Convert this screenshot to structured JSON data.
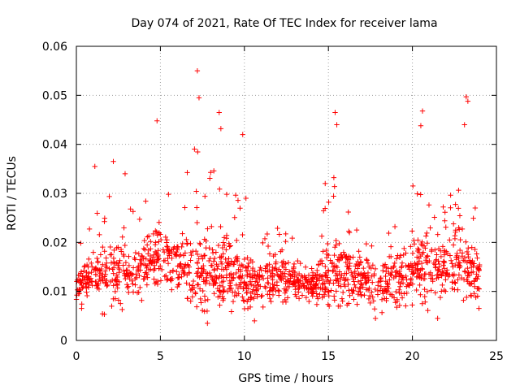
{
  "chart_data": {
    "type": "scatter",
    "title": "Day 074 of 2021, Rate Of TEC Index for receiver lama",
    "xlabel": "GPS time / hours",
    "ylabel": "ROTI / TECUs",
    "xlim": [
      0,
      25
    ],
    "ylim": [
      0,
      0.06
    ],
    "x_ticks": [
      0,
      5,
      10,
      15,
      20,
      25
    ],
    "x_tick_labels": [
      "0",
      "5",
      "10",
      "15",
      "20",
      "25"
    ],
    "y_ticks": [
      0,
      0.01,
      0.02,
      0.03,
      0.04,
      0.05,
      0.06
    ],
    "y_tick_labels": [
      "0",
      "0.01",
      "0.02",
      "0.03",
      "0.04",
      "0.05",
      "0.06"
    ],
    "grid": true,
    "marker": "+",
    "marker_color": "#ff0000",
    "series": [
      {
        "name": "ROTI",
        "notable_points": [
          {
            "x": 7.2,
            "y": 0.055
          },
          {
            "x": 7.3,
            "y": 0.0495
          },
          {
            "x": 4.8,
            "y": 0.0448
          },
          {
            "x": 8.5,
            "y": 0.0465
          },
          {
            "x": 8.6,
            "y": 0.0432
          },
          {
            "x": 9.9,
            "y": 0.042
          },
          {
            "x": 15.4,
            "y": 0.0465
          },
          {
            "x": 15.5,
            "y": 0.044
          },
          {
            "x": 20.6,
            "y": 0.0468
          },
          {
            "x": 20.5,
            "y": 0.0438
          },
          {
            "x": 23.2,
            "y": 0.0497
          },
          {
            "x": 23.3,
            "y": 0.0488
          },
          {
            "x": 23.1,
            "y": 0.044
          },
          {
            "x": 1.1,
            "y": 0.0355
          },
          {
            "x": 2.2,
            "y": 0.0365
          },
          {
            "x": 2.9,
            "y": 0.034
          },
          {
            "x": 7.8,
            "y": 0.0035
          },
          {
            "x": 10.6,
            "y": 0.004
          },
          {
            "x": 17.8,
            "y": 0.0045
          },
          {
            "x": 21.5,
            "y": 0.0045
          }
        ],
        "envelope_hourly": [
          {
            "hour": 0,
            "low": 0.006,
            "high": 0.018
          },
          {
            "hour": 1,
            "low": 0.005,
            "high": 0.028
          },
          {
            "hour": 2,
            "low": 0.005,
            "high": 0.03
          },
          {
            "hour": 3,
            "low": 0.006,
            "high": 0.027
          },
          {
            "hour": 4,
            "low": 0.008,
            "high": 0.03
          },
          {
            "hour": 5,
            "low": 0.009,
            "high": 0.035
          },
          {
            "hour": 6,
            "low": 0.008,
            "high": 0.03
          },
          {
            "hour": 7,
            "low": 0.006,
            "high": 0.04
          },
          {
            "hour": 8,
            "low": 0.004,
            "high": 0.035
          },
          {
            "hour": 9,
            "low": 0.005,
            "high": 0.033
          },
          {
            "hour": 10,
            "low": 0.004,
            "high": 0.03
          },
          {
            "hour": 11,
            "low": 0.006,
            "high": 0.022
          },
          {
            "hour": 12,
            "low": 0.006,
            "high": 0.026
          },
          {
            "hour": 13,
            "low": 0.007,
            "high": 0.02
          },
          {
            "hour": 14,
            "low": 0.006,
            "high": 0.017
          },
          {
            "hour": 15,
            "low": 0.007,
            "high": 0.036
          },
          {
            "hour": 16,
            "low": 0.007,
            "high": 0.033
          },
          {
            "hour": 17,
            "low": 0.006,
            "high": 0.022
          },
          {
            "hour": 18,
            "low": 0.005,
            "high": 0.02
          },
          {
            "hour": 19,
            "low": 0.005,
            "high": 0.03
          },
          {
            "hour": 20,
            "low": 0.005,
            "high": 0.035
          },
          {
            "hour": 21,
            "low": 0.005,
            "high": 0.033
          },
          {
            "hour": 22,
            "low": 0.006,
            "high": 0.028
          },
          {
            "hour": 23,
            "low": 0.006,
            "high": 0.04
          },
          {
            "hour": 24,
            "low": 0.006,
            "high": 0.025
          }
        ],
        "base_profile_hourly": [
          {
            "hour": 0,
            "y": 0.011
          },
          {
            "hour": 1,
            "y": 0.013
          },
          {
            "hour": 2,
            "y": 0.014
          },
          {
            "hour": 3,
            "y": 0.013
          },
          {
            "hour": 4,
            "y": 0.015
          },
          {
            "hour": 5,
            "y": 0.018
          },
          {
            "hour": 6,
            "y": 0.015
          },
          {
            "hour": 7,
            "y": 0.013
          },
          {
            "hour": 8,
            "y": 0.013
          },
          {
            "hour": 9,
            "y": 0.014
          },
          {
            "hour": 10,
            "y": 0.012
          },
          {
            "hour": 11,
            "y": 0.012
          },
          {
            "hour": 12,
            "y": 0.012
          },
          {
            "hour": 13,
            "y": 0.012
          },
          {
            "hour": 14,
            "y": 0.011
          },
          {
            "hour": 15,
            "y": 0.013
          },
          {
            "hour": 16,
            "y": 0.014
          },
          {
            "hour": 17,
            "y": 0.013
          },
          {
            "hour": 18,
            "y": 0.012
          },
          {
            "hour": 19,
            "y": 0.012
          },
          {
            "hour": 20,
            "y": 0.015
          },
          {
            "hour": 21,
            "y": 0.016
          },
          {
            "hour": 22,
            "y": 0.015
          },
          {
            "hour": 23,
            "y": 0.016
          },
          {
            "hour": 24,
            "y": 0.014
          }
        ]
      }
    ]
  }
}
